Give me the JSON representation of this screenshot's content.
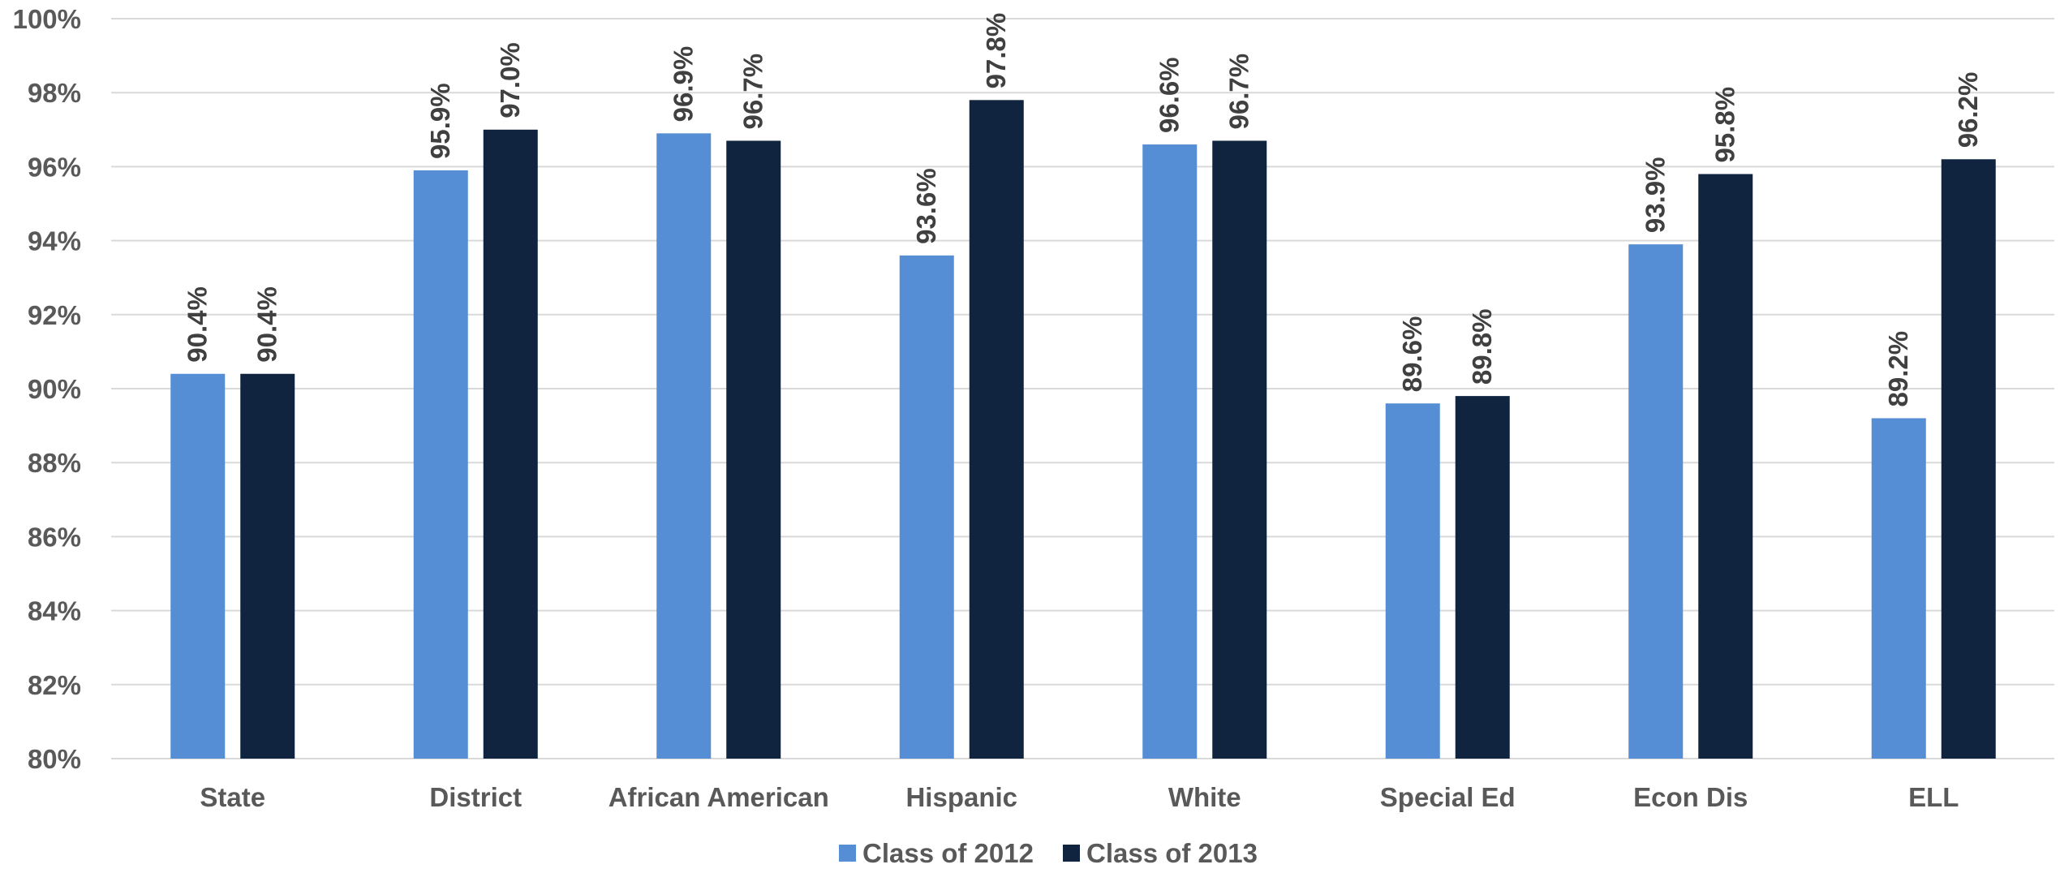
{
  "colors": {
    "class_2012": "#558ed5",
    "class_2013": "#10243f",
    "grid": "#d9d9d9",
    "axis_text": "#595959",
    "label_text": "#404040"
  },
  "chart_data": {
    "type": "bar",
    "title": "",
    "xlabel": "",
    "ylabel": "",
    "ylim": [
      80,
      100
    ],
    "y_ticks": [
      {
        "value": 80,
        "label": "80%"
      },
      {
        "value": 82,
        "label": "82%"
      },
      {
        "value": 84,
        "label": "84%"
      },
      {
        "value": 86,
        "label": "86%"
      },
      {
        "value": 88,
        "label": "88%"
      },
      {
        "value": 90,
        "label": "90%"
      },
      {
        "value": 92,
        "label": "92%"
      },
      {
        "value": 94,
        "label": "94%"
      },
      {
        "value": 96,
        "label": "96%"
      },
      {
        "value": 98,
        "label": "98%"
      },
      {
        "value": 100,
        "label": "100%"
      }
    ],
    "grid": true,
    "legend_position": "bottom-center",
    "categories": [
      "State",
      "District",
      "African American",
      "Hispanic",
      "White",
      "Special Ed",
      "Econ Dis",
      "ELL"
    ],
    "series": [
      {
        "name": "Class of 2012",
        "color": "#558ed5",
        "values": [
          90.4,
          95.9,
          96.9,
          93.6,
          96.6,
          89.6,
          93.9,
          89.2
        ],
        "labels": [
          "90.4%",
          "95.9%",
          "96.9%",
          "93.6%",
          "96.6%",
          "89.6%",
          "93.9%",
          "89.2%"
        ]
      },
      {
        "name": "Class of 2013",
        "color": "#10243f",
        "values": [
          90.4,
          97.0,
          96.7,
          97.8,
          96.7,
          89.8,
          95.8,
          96.2
        ],
        "labels": [
          "90.4%",
          "97.0%",
          "96.7%",
          "97.8%",
          "96.7%",
          "89.8%",
          "95.8%",
          "96.2%"
        ]
      }
    ]
  }
}
